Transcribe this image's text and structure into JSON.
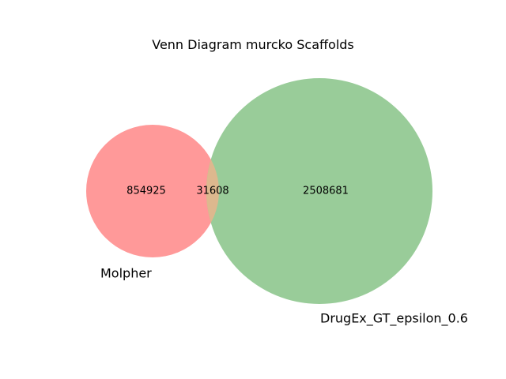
{
  "title": "Venn Diagram murcko Scaffolds",
  "chart_data": {
    "type": "venn",
    "title": "Venn Diagram murcko Scaffolds",
    "sets": [
      {
        "name": "Molpher",
        "only": 854925,
        "color": "#ff9999"
      },
      {
        "name": "DrugEx_GT_epsilon_0.6",
        "only": 2508681,
        "color": "#99cc99"
      }
    ],
    "intersection": 31608,
    "intersection_color": "#ddb88e"
  }
}
